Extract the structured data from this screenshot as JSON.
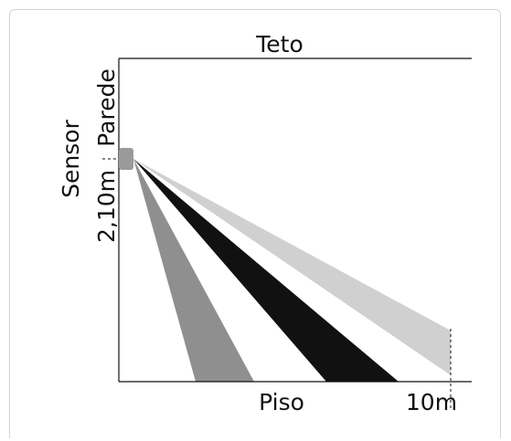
{
  "labels": {
    "ceiling": "Teto",
    "wall": "Parede",
    "sensor": "Sensor",
    "height": "2,10m",
    "floor": "Piso",
    "distance": "10m"
  },
  "colors": {
    "beam_far": "#d0d0d0",
    "beam_mid": "#111111",
    "beam_near": "#8f8f8f",
    "sensor": "#9a9a9a",
    "lines": "#111111",
    "frame": "#d2d2d2"
  },
  "icons": {
    "sensor": "sensor-block"
  }
}
